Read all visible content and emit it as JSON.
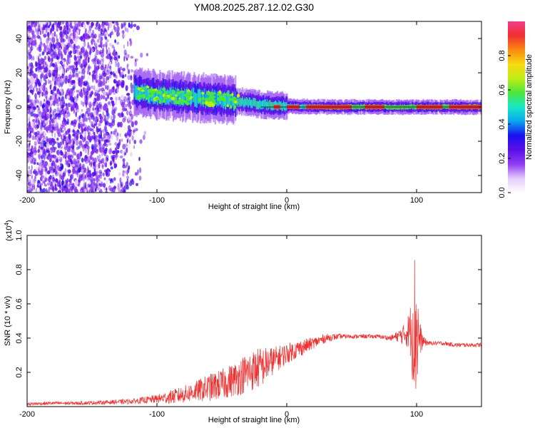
{
  "title": "YM08.2025.287.12.02.G30",
  "chart_data": [
    {
      "type": "heatmap",
      "name": "spectrogram",
      "xlabel": "Height of straight line (km)",
      "ylabel": "Frequency (Hz)",
      "xlim": [
        -200,
        150
      ],
      "ylim": [
        -50,
        50
      ],
      "xticks": [
        -200,
        -100,
        0,
        100
      ],
      "yticks": [
        -40,
        -20,
        0,
        20,
        40
      ],
      "colorbar": {
        "label": "Normalized spectral amplitude",
        "range": [
          0,
          1
        ],
        "ticks": [
          "0.0",
          "0.2",
          "0.4",
          "0.6",
          "0.8"
        ],
        "colors": [
          "#ffffff",
          "#e4cbfb",
          "#8e3bf0",
          "#5a10e8",
          "#1a10ee",
          "#08a6ee",
          "#18e8c8",
          "#4ce63c",
          "#c0ec18",
          "#f8d810",
          "#fa8a10",
          "#f03030",
          "#f03c8c"
        ]
      },
      "ridge": {
        "x": [
          -118,
          -100,
          -80,
          -60,
          -45,
          -35,
          -20,
          0,
          30,
          60,
          80,
          90,
          95,
          100,
          150
        ],
        "freq": [
          9,
          7,
          6,
          5,
          4,
          3,
          1.5,
          0.5,
          0,
          0,
          0,
          0,
          0,
          0,
          0
        ]
      }
    },
    {
      "type": "line",
      "name": "snr",
      "xlabel": "Height of straight line (km)",
      "ylabel": "SNR (10 * v/v)",
      "multiplier": "(x10",
      "multiplier_exp": "4",
      "xlim": [
        -200,
        150
      ],
      "ylim": [
        0,
        1.0
      ],
      "xticks": [
        -200,
        -100,
        0,
        100
      ],
      "yticks": [
        "0.2",
        "0.4",
        "0.6",
        "0.8",
        "1.0"
      ],
      "color": "#ee3030",
      "series": [
        {
          "name": "SNR",
          "x": [
            -200,
            -180,
            -160,
            -140,
            -120,
            -100,
            -90,
            -80,
            -70,
            -60,
            -50,
            -40,
            -30,
            -20,
            -10,
            0,
            10,
            20,
            30,
            40,
            50,
            60,
            70,
            80,
            85,
            90,
            95,
            98,
            100,
            102,
            105,
            110,
            120,
            130,
            140,
            150
          ],
          "y": [
            0.015,
            0.02,
            0.02,
            0.025,
            0.03,
            0.045,
            0.055,
            0.07,
            0.09,
            0.11,
            0.13,
            0.16,
            0.2,
            0.23,
            0.27,
            0.31,
            0.34,
            0.37,
            0.4,
            0.41,
            0.41,
            0.41,
            0.41,
            0.4,
            0.41,
            0.42,
            0.45,
            0.48,
            0.45,
            0.4,
            0.38,
            0.37,
            0.37,
            0.36,
            0.36,
            0.36
          ],
          "noise": [
            0.01,
            0.01,
            0.01,
            0.012,
            0.015,
            0.025,
            0.04,
            0.05,
            0.06,
            0.08,
            0.09,
            0.1,
            0.12,
            0.12,
            0.08,
            0.06,
            0.05,
            0.035,
            0.025,
            0.015,
            0.012,
            0.012,
            0.012,
            0.015,
            0.03,
            0.06,
            0.12,
            0.45,
            0.45,
            0.12,
            0.03,
            0.012,
            0.012,
            0.012,
            0.012,
            0.012
          ]
        }
      ]
    }
  ]
}
